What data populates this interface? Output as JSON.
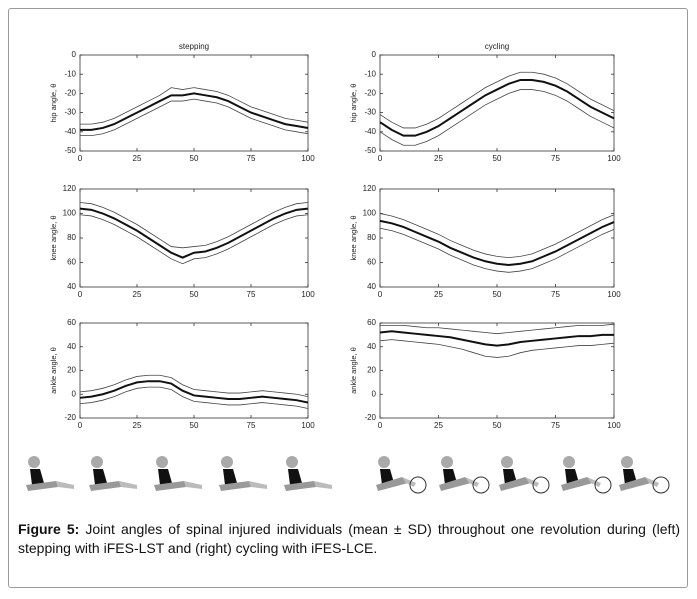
{
  "chart_data": [
    {
      "type": "line",
      "title": "stepping",
      "ylabel": "hip angle, θ",
      "x": [
        0,
        5,
        10,
        15,
        20,
        25,
        30,
        35,
        40,
        45,
        50,
        55,
        60,
        65,
        70,
        75,
        80,
        85,
        90,
        95,
        100
      ],
      "xlim": [
        0,
        100
      ],
      "xticks": [
        0,
        25,
        50,
        75,
        100
      ],
      "ylim": [
        -50,
        0
      ],
      "yticks": [
        -50,
        -40,
        -30,
        -20,
        -10,
        0
      ],
      "series": [
        {
          "color": "#111111",
          "linewidth": 2,
          "values": [
            -39,
            -39,
            -38,
            -36,
            -33,
            -30,
            -27,
            -24,
            -21,
            -21,
            -20,
            -21,
            -22,
            -24,
            -27,
            -30,
            -32,
            -34,
            -36,
            -37,
            -38
          ]
        },
        {
          "color": "#444444",
          "linewidth": 0.8,
          "values": [
            -36,
            -36,
            -35,
            -33,
            -30,
            -27,
            -24,
            -21,
            -17,
            -18,
            -17,
            -18,
            -19,
            -21,
            -24,
            -27,
            -29,
            -31,
            -33,
            -34,
            -35
          ]
        },
        {
          "color": "#444444",
          "linewidth": 0.8,
          "values": [
            -42,
            -42,
            -41,
            -39,
            -36,
            -33,
            -30,
            -27,
            -24,
            -24,
            -23,
            -24,
            -25,
            -27,
            -30,
            -33,
            -35,
            -37,
            -39,
            -40,
            -41
          ]
        }
      ]
    },
    {
      "type": "line",
      "title": "cycling",
      "ylabel": "hip angle, θ",
      "x": [
        0,
        5,
        10,
        15,
        20,
        25,
        30,
        35,
        40,
        45,
        50,
        55,
        60,
        65,
        70,
        75,
        80,
        85,
        90,
        95,
        100
      ],
      "xlim": [
        0,
        100
      ],
      "xticks": [
        0,
        25,
        50,
        75,
        100
      ],
      "ylim": [
        -50,
        0
      ],
      "yticks": [
        -50,
        -40,
        -30,
        -20,
        -10,
        0
      ],
      "series": [
        {
          "color": "#111111",
          "linewidth": 2,
          "values": [
            -35,
            -39,
            -42,
            -42,
            -40,
            -37,
            -33,
            -29,
            -25,
            -21,
            -18,
            -15,
            -13,
            -13,
            -14,
            -16,
            -19,
            -23,
            -27,
            -30,
            -33
          ]
        },
        {
          "color": "#444444",
          "linewidth": 0.8,
          "values": [
            -31,
            -35,
            -38,
            -38,
            -36,
            -33,
            -29,
            -25,
            -21,
            -17,
            -14,
            -11,
            -9,
            -9,
            -10,
            -12,
            -15,
            -19,
            -23,
            -26,
            -29
          ]
        },
        {
          "color": "#444444",
          "linewidth": 0.8,
          "values": [
            -40,
            -44,
            -47,
            -47,
            -45,
            -42,
            -38,
            -34,
            -30,
            -26,
            -23,
            -20,
            -18,
            -18,
            -19,
            -21,
            -24,
            -28,
            -32,
            -35,
            -38
          ]
        }
      ]
    },
    {
      "type": "line",
      "ylabel": "knee angle, θ",
      "x": [
        0,
        5,
        10,
        15,
        20,
        25,
        30,
        35,
        40,
        45,
        50,
        55,
        60,
        65,
        70,
        75,
        80,
        85,
        90,
        95,
        100
      ],
      "xlim": [
        0,
        100
      ],
      "xticks": [
        0,
        25,
        50,
        75,
        100
      ],
      "ylim": [
        40,
        120
      ],
      "yticks": [
        40,
        60,
        80,
        100,
        120
      ],
      "series": [
        {
          "color": "#111111",
          "linewidth": 2,
          "values": [
            104,
            103,
            100,
            96,
            91,
            86,
            80,
            74,
            68,
            64,
            68,
            69,
            72,
            76,
            81,
            86,
            91,
            96,
            100,
            103,
            104
          ]
        },
        {
          "color": "#444444",
          "linewidth": 0.8,
          "values": [
            109,
            108,
            105,
            101,
            96,
            91,
            85,
            79,
            73,
            72,
            73,
            74,
            77,
            81,
            86,
            91,
            96,
            101,
            105,
            108,
            109
          ]
        },
        {
          "color": "#444444",
          "linewidth": 0.8,
          "values": [
            99,
            98,
            95,
            91,
            86,
            81,
            75,
            69,
            63,
            59,
            63,
            64,
            67,
            71,
            76,
            81,
            86,
            91,
            95,
            98,
            99
          ]
        }
      ]
    },
    {
      "type": "line",
      "ylabel": "knee angle, θ",
      "x": [
        0,
        5,
        10,
        15,
        20,
        25,
        30,
        35,
        40,
        45,
        50,
        55,
        60,
        65,
        70,
        75,
        80,
        85,
        90,
        95,
        100
      ],
      "xlim": [
        0,
        100
      ],
      "xticks": [
        0,
        25,
        50,
        75,
        100
      ],
      "ylim": [
        40,
        120
      ],
      "yticks": [
        40,
        60,
        80,
        100,
        120
      ],
      "series": [
        {
          "color": "#111111",
          "linewidth": 2,
          "values": [
            94,
            92,
            89,
            85,
            81,
            77,
            72,
            68,
            64,
            61,
            59,
            58,
            59,
            61,
            65,
            69,
            74,
            79,
            84,
            89,
            93
          ]
        },
        {
          "color": "#444444",
          "linewidth": 0.8,
          "values": [
            100,
            98,
            95,
            91,
            87,
            83,
            78,
            74,
            70,
            67,
            65,
            64,
            65,
            67,
            71,
            75,
            80,
            85,
            90,
            95,
            99
          ]
        },
        {
          "color": "#444444",
          "linewidth": 0.8,
          "values": [
            88,
            86,
            83,
            79,
            75,
            71,
            66,
            62,
            58,
            55,
            53,
            52,
            53,
            55,
            59,
            63,
            68,
            73,
            78,
            83,
            87
          ]
        }
      ]
    },
    {
      "type": "line",
      "ylabel": "ankle angle, θ",
      "x": [
        0,
        5,
        10,
        15,
        20,
        25,
        30,
        35,
        40,
        45,
        50,
        55,
        60,
        65,
        70,
        75,
        80,
        85,
        90,
        95,
        100
      ],
      "xlim": [
        0,
        100
      ],
      "xticks": [
        0,
        25,
        50,
        75,
        100
      ],
      "ylim": [
        -20,
        60
      ],
      "yticks": [
        -20,
        0,
        20,
        40,
        60
      ],
      "series": [
        {
          "color": "#111111",
          "linewidth": 2,
          "values": [
            -3,
            -2,
            0,
            3,
            7,
            10,
            11,
            11,
            9,
            3,
            -1,
            -2,
            -3,
            -4,
            -4,
            -3,
            -2,
            -3,
            -4,
            -5,
            -7
          ]
        },
        {
          "color": "#444444",
          "linewidth": 0.8,
          "values": [
            2,
            3,
            5,
            8,
            12,
            15,
            16,
            16,
            14,
            8,
            4,
            3,
            2,
            1,
            1,
            2,
            3,
            2,
            1,
            0,
            -2
          ]
        },
        {
          "color": "#444444",
          "linewidth": 0.8,
          "values": [
            -8,
            -7,
            -5,
            -2,
            2,
            5,
            6,
            6,
            4,
            -2,
            -6,
            -7,
            -8,
            -9,
            -9,
            -8,
            -7,
            -8,
            -9,
            -10,
            -12
          ]
        }
      ]
    },
    {
      "type": "line",
      "ylabel": "ankle angle, θ",
      "x": [
        0,
        5,
        10,
        15,
        20,
        25,
        30,
        35,
        40,
        45,
        50,
        55,
        60,
        65,
        70,
        75,
        80,
        85,
        90,
        95,
        100
      ],
      "xlim": [
        0,
        100
      ],
      "xticks": [
        0,
        25,
        50,
        75,
        100
      ],
      "ylim": [
        -20,
        60
      ],
      "yticks": [
        -20,
        0,
        20,
        40,
        60
      ],
      "series": [
        {
          "color": "#111111",
          "linewidth": 2,
          "values": [
            52,
            53,
            52,
            51,
            50,
            49,
            48,
            46,
            44,
            42,
            41,
            42,
            44,
            45,
            46,
            47,
            48,
            49,
            49,
            50,
            50
          ]
        },
        {
          "color": "#444444",
          "linewidth": 0.8,
          "values": [
            58,
            58,
            58,
            57,
            56,
            56,
            55,
            54,
            53,
            52,
            51,
            52,
            53,
            54,
            55,
            56,
            57,
            58,
            58,
            58,
            59
          ]
        },
        {
          "color": "#444444",
          "linewidth": 0.8,
          "values": [
            45,
            46,
            45,
            44,
            43,
            42,
            40,
            38,
            35,
            32,
            31,
            32,
            35,
            37,
            38,
            39,
            40,
            41,
            41,
            42,
            43
          ]
        }
      ]
    }
  ],
  "caption": {
    "label": "Figure 5:",
    "text": "Joint angles of spinal injured individuals (mean ± SD) throughout one revolution during (left) stepping with iFES-LST and (right) cycling with iFES-LCE."
  }
}
